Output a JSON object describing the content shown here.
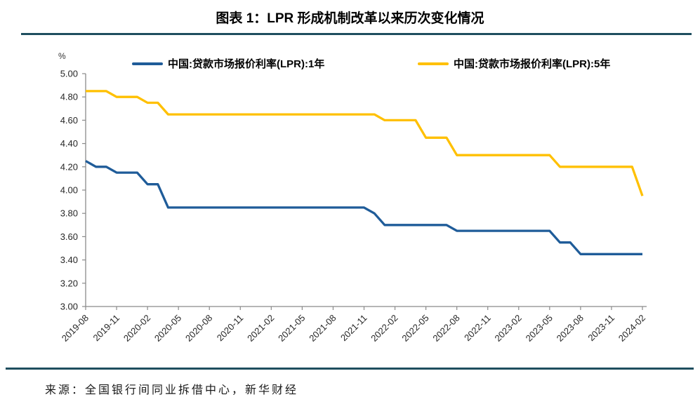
{
  "header": {
    "title": "图表 1：LPR 形成机制改革以来历次变化情况"
  },
  "footer": {
    "source": "来源：全国银行间同业拆借中心，新华财经"
  },
  "theme": {
    "rule_color": "#1F4E5F",
    "axis_color": "#8a8a8a",
    "tick_label_color": "#262626"
  },
  "chart_data": {
    "type": "line",
    "title": "图表 1：LPR 形成机制改革以来历次变化情况",
    "ylabel_unit": "%",
    "grid": false,
    "legend_position": "top",
    "ylim": [
      3.0,
      5.0
    ],
    "y_ticks": [
      "5.00",
      "4.80",
      "4.60",
      "4.40",
      "4.20",
      "4.00",
      "3.80",
      "3.60",
      "3.40",
      "3.20",
      "3.00"
    ],
    "n_points": 55,
    "x_start": "2019-08",
    "x_end": "2024-02",
    "x_tick_every_n_points": 3,
    "x_tick_labels": [
      "2019-08",
      "2019-11",
      "2020-02",
      "2020-05",
      "2020-08",
      "2020-11",
      "2021-02",
      "2021-05",
      "2021-08",
      "2021-11",
      "2022-02",
      "2022-05",
      "2022-08",
      "2022-11",
      "2023-02",
      "2023-05",
      "2023-08",
      "2023-11",
      "2024-02"
    ],
    "series": [
      {
        "name": "中国:贷款市场报价利率(LPR):1年",
        "color": "#1F5C99",
        "values": [
          4.25,
          4.2,
          4.2,
          4.15,
          4.15,
          4.15,
          4.05,
          4.05,
          3.85,
          3.85,
          3.85,
          3.85,
          3.85,
          3.85,
          3.85,
          3.85,
          3.85,
          3.85,
          3.85,
          3.85,
          3.85,
          3.85,
          3.85,
          3.85,
          3.85,
          3.85,
          3.85,
          3.85,
          3.8,
          3.7,
          3.7,
          3.7,
          3.7,
          3.7,
          3.7,
          3.7,
          3.65,
          3.65,
          3.65,
          3.65,
          3.65,
          3.65,
          3.65,
          3.65,
          3.65,
          3.65,
          3.55,
          3.55,
          3.45,
          3.45,
          3.45,
          3.45,
          3.45,
          3.45,
          3.45
        ]
      },
      {
        "name": "中国:贷款市场报价利率(LPR):5年",
        "color": "#FFC000",
        "values": [
          4.85,
          4.85,
          4.85,
          4.8,
          4.8,
          4.8,
          4.75,
          4.75,
          4.65,
          4.65,
          4.65,
          4.65,
          4.65,
          4.65,
          4.65,
          4.65,
          4.65,
          4.65,
          4.65,
          4.65,
          4.65,
          4.65,
          4.65,
          4.65,
          4.65,
          4.65,
          4.65,
          4.65,
          4.65,
          4.6,
          4.6,
          4.6,
          4.6,
          4.45,
          4.45,
          4.45,
          4.3,
          4.3,
          4.3,
          4.3,
          4.3,
          4.3,
          4.3,
          4.3,
          4.3,
          4.3,
          4.2,
          4.2,
          4.2,
          4.2,
          4.2,
          4.2,
          4.2,
          4.2,
          3.95
        ]
      }
    ]
  }
}
